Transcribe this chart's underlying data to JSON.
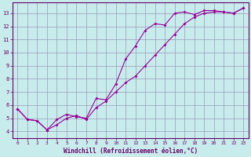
{
  "xlabel": "Windchill (Refroidissement éolien,°C)",
  "bg_color": "#c8ecec",
  "line_color": "#990099",
  "grid_color": "#9999bb",
  "xlim": [
    -0.5,
    23.5
  ],
  "ylim": [
    3.5,
    13.8
  ],
  "xticks": [
    0,
    1,
    2,
    3,
    4,
    5,
    6,
    7,
    8,
    9,
    10,
    11,
    12,
    13,
    14,
    15,
    16,
    17,
    18,
    19,
    20,
    21,
    22,
    23
  ],
  "yticks": [
    4,
    5,
    6,
    7,
    8,
    9,
    10,
    11,
    12,
    13
  ],
  "line1_x": [
    0,
    1,
    2,
    3,
    4,
    5,
    6,
    7,
    8,
    9,
    10,
    11,
    12,
    13,
    14,
    15,
    16,
    17,
    18,
    19,
    20,
    21,
    22,
    23
  ],
  "line1_y": [
    5.7,
    4.9,
    4.8,
    4.1,
    4.9,
    5.3,
    5.1,
    5.0,
    6.5,
    6.4,
    7.6,
    9.5,
    10.5,
    11.7,
    12.2,
    12.1,
    13.0,
    13.1,
    12.9,
    13.2,
    13.2,
    13.1,
    13.0,
    13.4
  ],
  "line2_x": [
    0,
    1,
    2,
    3,
    4,
    5,
    6,
    7,
    8,
    9,
    10,
    11,
    12,
    13,
    14,
    15,
    16,
    17,
    18,
    19,
    20,
    21,
    22,
    23
  ],
  "line2_y": [
    5.7,
    4.9,
    4.8,
    4.1,
    4.5,
    5.0,
    5.2,
    4.9,
    5.8,
    6.3,
    7.0,
    7.7,
    8.2,
    9.0,
    9.8,
    10.6,
    11.4,
    12.2,
    12.7,
    13.0,
    13.1,
    13.1,
    13.0,
    13.4
  ]
}
